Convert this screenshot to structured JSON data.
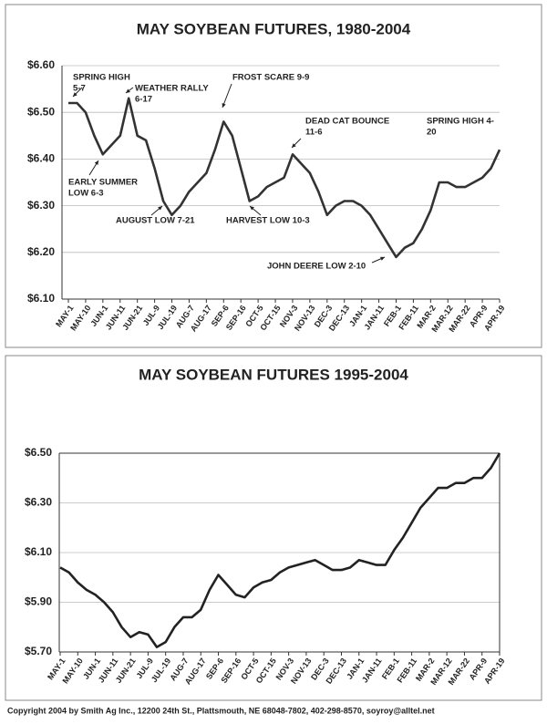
{
  "chart_data": [
    {
      "type": "line",
      "title": "MAY SOYBEAN FUTURES, 1980-2004",
      "categories": [
        "MAY-1",
        null,
        "MAY-10",
        null,
        "JUN-1",
        null,
        "JUN-11",
        null,
        "JUN-21",
        null,
        "JUL-9",
        null,
        "JUL-19",
        null,
        "AUG-7",
        null,
        "AUG-17",
        null,
        "SEP-6",
        null,
        "SEP-16",
        null,
        "OCT-5",
        null,
        "OCT-15",
        null,
        "NOV-3",
        null,
        "NOV-13",
        null,
        "DEC-3",
        null,
        "DEC-13",
        null,
        "JAN-1",
        null,
        "JAN-11",
        null,
        "FEB-1",
        null,
        "FEB-11",
        null,
        "MAR-2",
        null,
        "MAR-12",
        null,
        "MAR-22",
        null,
        "APR-9",
        null,
        "APR-19"
      ],
      "values": [
        6.52,
        6.52,
        6.5,
        6.45,
        6.41,
        6.43,
        6.45,
        6.53,
        6.45,
        6.44,
        6.38,
        6.31,
        6.28,
        6.3,
        6.33,
        6.35,
        6.37,
        6.42,
        6.48,
        6.45,
        6.38,
        6.31,
        6.32,
        6.34,
        6.35,
        6.36,
        6.41,
        6.39,
        6.37,
        6.33,
        6.28,
        6.3,
        6.31,
        6.31,
        6.3,
        6.28,
        6.25,
        6.22,
        6.19,
        6.21,
        6.22,
        6.25,
        6.29,
        6.35,
        6.35,
        6.34,
        6.34,
        6.35,
        6.36,
        6.38,
        6.42
      ],
      "color": "#333333",
      "ylim": [
        6.1,
        6.6
      ],
      "yticks": [
        {
          "value": 6.1,
          "label": "$6.10"
        },
        {
          "value": 6.2,
          "label": "$6.20"
        },
        {
          "value": 6.3,
          "label": "$6.30"
        },
        {
          "value": 6.4,
          "label": "$6.40"
        },
        {
          "value": 6.5,
          "label": "$6.50"
        },
        {
          "value": 6.6,
          "label": "$6.60"
        }
      ],
      "grid": true,
      "annotations": [
        {
          "lines": [
            "SPRING HIGH",
            "5-7"
          ]
        },
        {
          "lines": [
            "WEATHER RALLY",
            "6-17"
          ]
        },
        {
          "lines": [
            "FROST SCARE 9-9"
          ]
        },
        {
          "lines": [
            "DEAD CAT BOUNCE",
            "11-6"
          ]
        },
        {
          "lines": [
            "SPRING HIGH 4-",
            "20"
          ]
        },
        {
          "lines": [
            "EARLY SUMMER",
            "LOW 6-3"
          ]
        },
        {
          "lines": [
            "AUGUST LOW 7-21"
          ]
        },
        {
          "lines": [
            "HARVEST LOW 10-3"
          ]
        },
        {
          "lines": [
            "JOHN DEERE LOW 2-10"
          ]
        }
      ]
    },
    {
      "type": "line",
      "title": "MAY SOYBEAN FUTURES 1995-2004",
      "categories": [
        "MAY-1",
        null,
        "MAY-10",
        null,
        "JUN-1",
        null,
        "JUN-11",
        null,
        "JUN-21",
        null,
        "JUL-9",
        null,
        "JUL-19",
        null,
        "AUG-7",
        null,
        "AUG-17",
        null,
        "SEP-6",
        null,
        "SEP-16",
        null,
        "OCT-5",
        null,
        "OCT-15",
        null,
        "NOV-3",
        null,
        "NOV-13",
        null,
        "DEC-3",
        null,
        "DEC-13",
        null,
        "JAN-1",
        null,
        "JAN-11",
        null,
        "FEB-1",
        null,
        "FEB-11",
        null,
        "MAR-2",
        null,
        "MAR-12",
        null,
        "MAR-22",
        null,
        "APR-9",
        null,
        "APR-19"
      ],
      "values": [
        6.04,
        6.02,
        5.98,
        5.95,
        5.93,
        5.9,
        5.86,
        5.8,
        5.76,
        5.78,
        5.77,
        5.72,
        5.74,
        5.8,
        5.84,
        5.84,
        5.87,
        5.95,
        6.01,
        5.97,
        5.93,
        5.92,
        5.96,
        5.98,
        5.99,
        6.02,
        6.04,
        6.05,
        6.06,
        6.07,
        6.05,
        6.03,
        6.03,
        6.04,
        6.07,
        6.06,
        6.05,
        6.05,
        6.11,
        6.16,
        6.22,
        6.28,
        6.32,
        6.36,
        6.36,
        6.38,
        6.38,
        6.4,
        6.4,
        6.44,
        6.5
      ],
      "color": "#222222",
      "ylim": [
        5.7,
        6.5
      ],
      "yticks": [
        {
          "value": 5.7,
          "label": "$5.70"
        },
        {
          "value": 5.9,
          "label": "$5.90"
        },
        {
          "value": 6.1,
          "label": "$6.10"
        },
        {
          "value": 6.3,
          "label": "$6.30"
        },
        {
          "value": 6.5,
          "label": "$6.50"
        }
      ],
      "grid": true
    }
  ],
  "footer": "Copyright 2004 by Smith Ag Inc., 12200 24th St., Plattsmouth, NE 68048-7802, 402-298-8570, soyroy@alltel.net"
}
